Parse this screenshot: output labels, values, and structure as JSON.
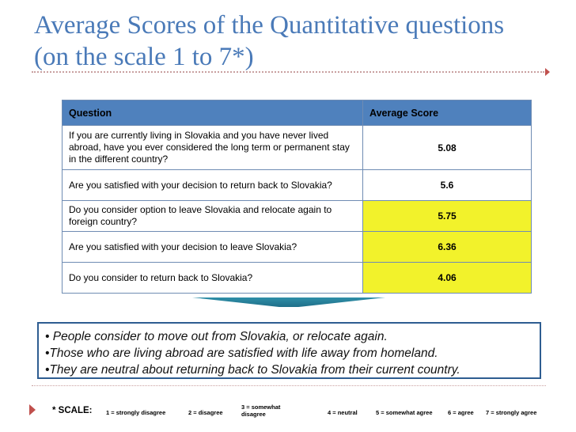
{
  "title": "Average Scores of the Quantitative questions (on the scale 1 to 7*)",
  "table": {
    "headers": {
      "question": "Question",
      "score": "Average Score"
    },
    "rows": [
      {
        "question": "If you are currently living in Slovakia and you have never lived abroad, have you ever considered the long term or permanent stay in the different country?",
        "score": "5.08",
        "highlight": false
      },
      {
        "question": "Are you satisfied with your decision to return back to Slovakia?",
        "score": "5.6",
        "highlight": false
      },
      {
        "question": "Do you consider option to leave Slovakia and relocate again to foreign country?",
        "score": "5.75",
        "highlight": true
      },
      {
        "question": "Are you satisfied with your decision to leave Slovakia?",
        "score": "6.36",
        "highlight": true
      },
      {
        "question": "Do you consider to return back to Slovakia?",
        "score": "4.06",
        "highlight": true
      }
    ]
  },
  "summary": {
    "line1": "• People consider to move out from Slovakia, or relocate again.",
    "line2": "•Those who are living abroad are satisfied with life away from homeland.",
    "line3": "•They are neutral about returning back to Slovakia from their current country."
  },
  "scale": {
    "label": "* SCALE:",
    "items": [
      "1 = strongly disagree",
      "2 = disagree",
      "3 = somewhat disagree",
      "4 = neutral",
      "5 = somewhat agree",
      "6 = agree",
      "7 =  strongly agree"
    ]
  },
  "colors": {
    "title": "#4a7ab8",
    "header": "#4f81bd",
    "highlight": "#f2f22b",
    "box_border": "#2e5d91"
  }
}
